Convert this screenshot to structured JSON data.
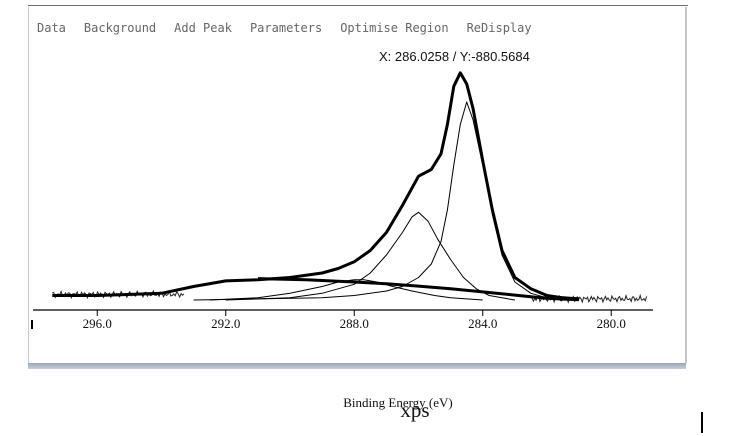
{
  "menu": {
    "items": [
      "Data",
      "Background",
      "Add Peak",
      "Parameters",
      "Optimise Region",
      "ReDisplay"
    ]
  },
  "readout": "X: 286.0258 / Y:-880.5684",
  "caption": "xps",
  "chart_data": {
    "type": "line",
    "xlabel": "Binding Energy (eV)",
    "ylabel": "",
    "title": "",
    "x_reversed": true,
    "xlim": [
      298.0,
      278.7
    ],
    "x_ticks": [
      296.0,
      292.0,
      288.0,
      284.0,
      280.0
    ],
    "x_tick_labels": [
      "296.0",
      "292.0",
      "288.0",
      "284.0",
      "280.0"
    ],
    "ylim": [
      0,
      100
    ],
    "grid": false,
    "series": [
      {
        "style": "bold",
        "x": [
          297.4,
          296,
          294,
          293,
          292,
          291,
          290,
          289,
          288.5,
          288,
          287.5,
          287,
          286.5,
          286,
          285.6,
          285.3,
          285.1,
          284.9,
          284.7,
          284.5,
          284.3,
          284.0,
          283.7,
          283.4,
          283.0,
          282.5,
          282.0,
          281.5,
          281.0
        ],
        "y": [
          2,
          2,
          3,
          6,
          8.5,
          9,
          10,
          12,
          14,
          17,
          22,
          30,
          42,
          55,
          58,
          65,
          78,
          95,
          101,
          96,
          85,
          62,
          40,
          22,
          10,
          5,
          2,
          1,
          0.5
        ]
      },
      {
        "style": "thin",
        "x": [
          293,
          291,
          289,
          288,
          287,
          286.5,
          286,
          285.6,
          285.3,
          285.1,
          284.9,
          284.7,
          284.5,
          284.3,
          284.0,
          283.7,
          283.4,
          283.0,
          282.5,
          282
        ],
        "y": [
          0,
          0.5,
          1,
          2,
          4,
          6,
          10,
          16,
          26,
          40,
          60,
          78,
          88,
          80,
          60,
          38,
          20,
          8,
          3,
          1
        ]
      },
      {
        "style": "thin",
        "x": [
          292,
          290,
          289,
          288,
          287.5,
          287,
          286.5,
          286.2,
          286.0,
          285.7,
          285.4,
          285.0,
          284.6,
          284.2,
          283.8,
          283.4,
          283.0
        ],
        "y": [
          0,
          1,
          3,
          7,
          12,
          20,
          30,
          37,
          39,
          35,
          27,
          18,
          10,
          5,
          2,
          1,
          0
        ]
      },
      {
        "style": "thin",
        "x": [
          292.5,
          291,
          290,
          289,
          288.5,
          288,
          287.7,
          287.3,
          286.8,
          286.2,
          285.5,
          285.0,
          284.5,
          284
        ],
        "y": [
          0,
          1,
          3,
          6,
          8,
          9,
          9,
          8,
          6,
          4,
          2,
          1,
          0.5,
          0
        ]
      },
      {
        "style": "bold",
        "x": [
          291.0,
          289.5,
          288.0,
          287.0,
          286.0,
          285.0,
          284.0,
          283.0,
          282.5,
          282.0,
          281.5,
          281.0
        ],
        "y": [
          9.5,
          9.0,
          8.0,
          7.2,
          6.2,
          5.0,
          3.6,
          2.2,
          1.4,
          0.8,
          0.4,
          0.2
        ]
      }
    ],
    "noise_segments": [
      {
        "x_start": 297.4,
        "x_end": 293.3,
        "base": 2.5
      },
      {
        "x_start": 282.5,
        "x_end": 278.9,
        "base": 0.5
      }
    ]
  }
}
